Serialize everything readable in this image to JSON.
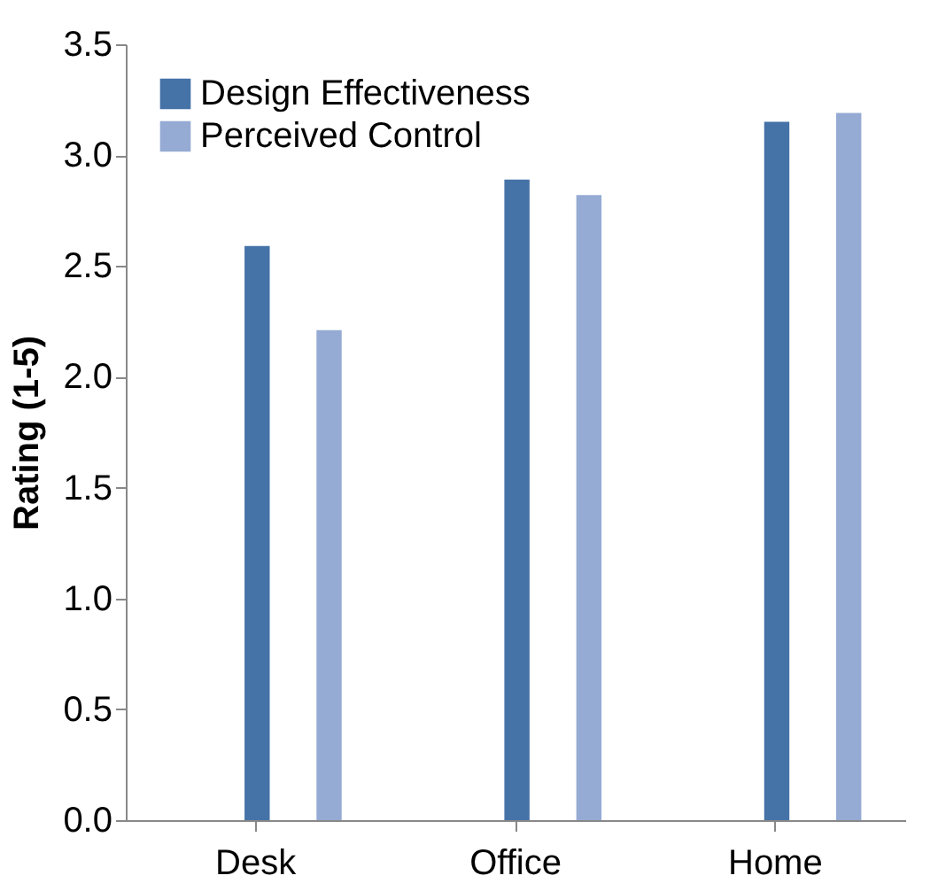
{
  "chart_data": {
    "type": "bar",
    "ylabel": "Rating (1-5)",
    "categories": [
      "Desk",
      "Office",
      "Home"
    ],
    "series": [
      {
        "name": "Design Effectiveness",
        "color": "#4572a7",
        "values": [
          2.59,
          2.89,
          3.15
        ]
      },
      {
        "name": "Perceived Control",
        "color": "#95abd4",
        "values": [
          2.21,
          2.82,
          3.19
        ]
      }
    ],
    "ylim": [
      0,
      3.5
    ],
    "yticks": [
      {
        "value": 0,
        "label": "0.0"
      },
      {
        "value": 0.5,
        "label": "0.5"
      },
      {
        "value": 1,
        "label": "1.0"
      },
      {
        "value": 1.5,
        "label": "1.5"
      },
      {
        "value": 2,
        "label": "2.0"
      },
      {
        "value": 2.5,
        "label": "2.5"
      },
      {
        "value": 3,
        "label": "3.0"
      },
      {
        "value": 3.5,
        "label": "3.5"
      }
    ],
    "grid": false,
    "legend": "top left"
  }
}
